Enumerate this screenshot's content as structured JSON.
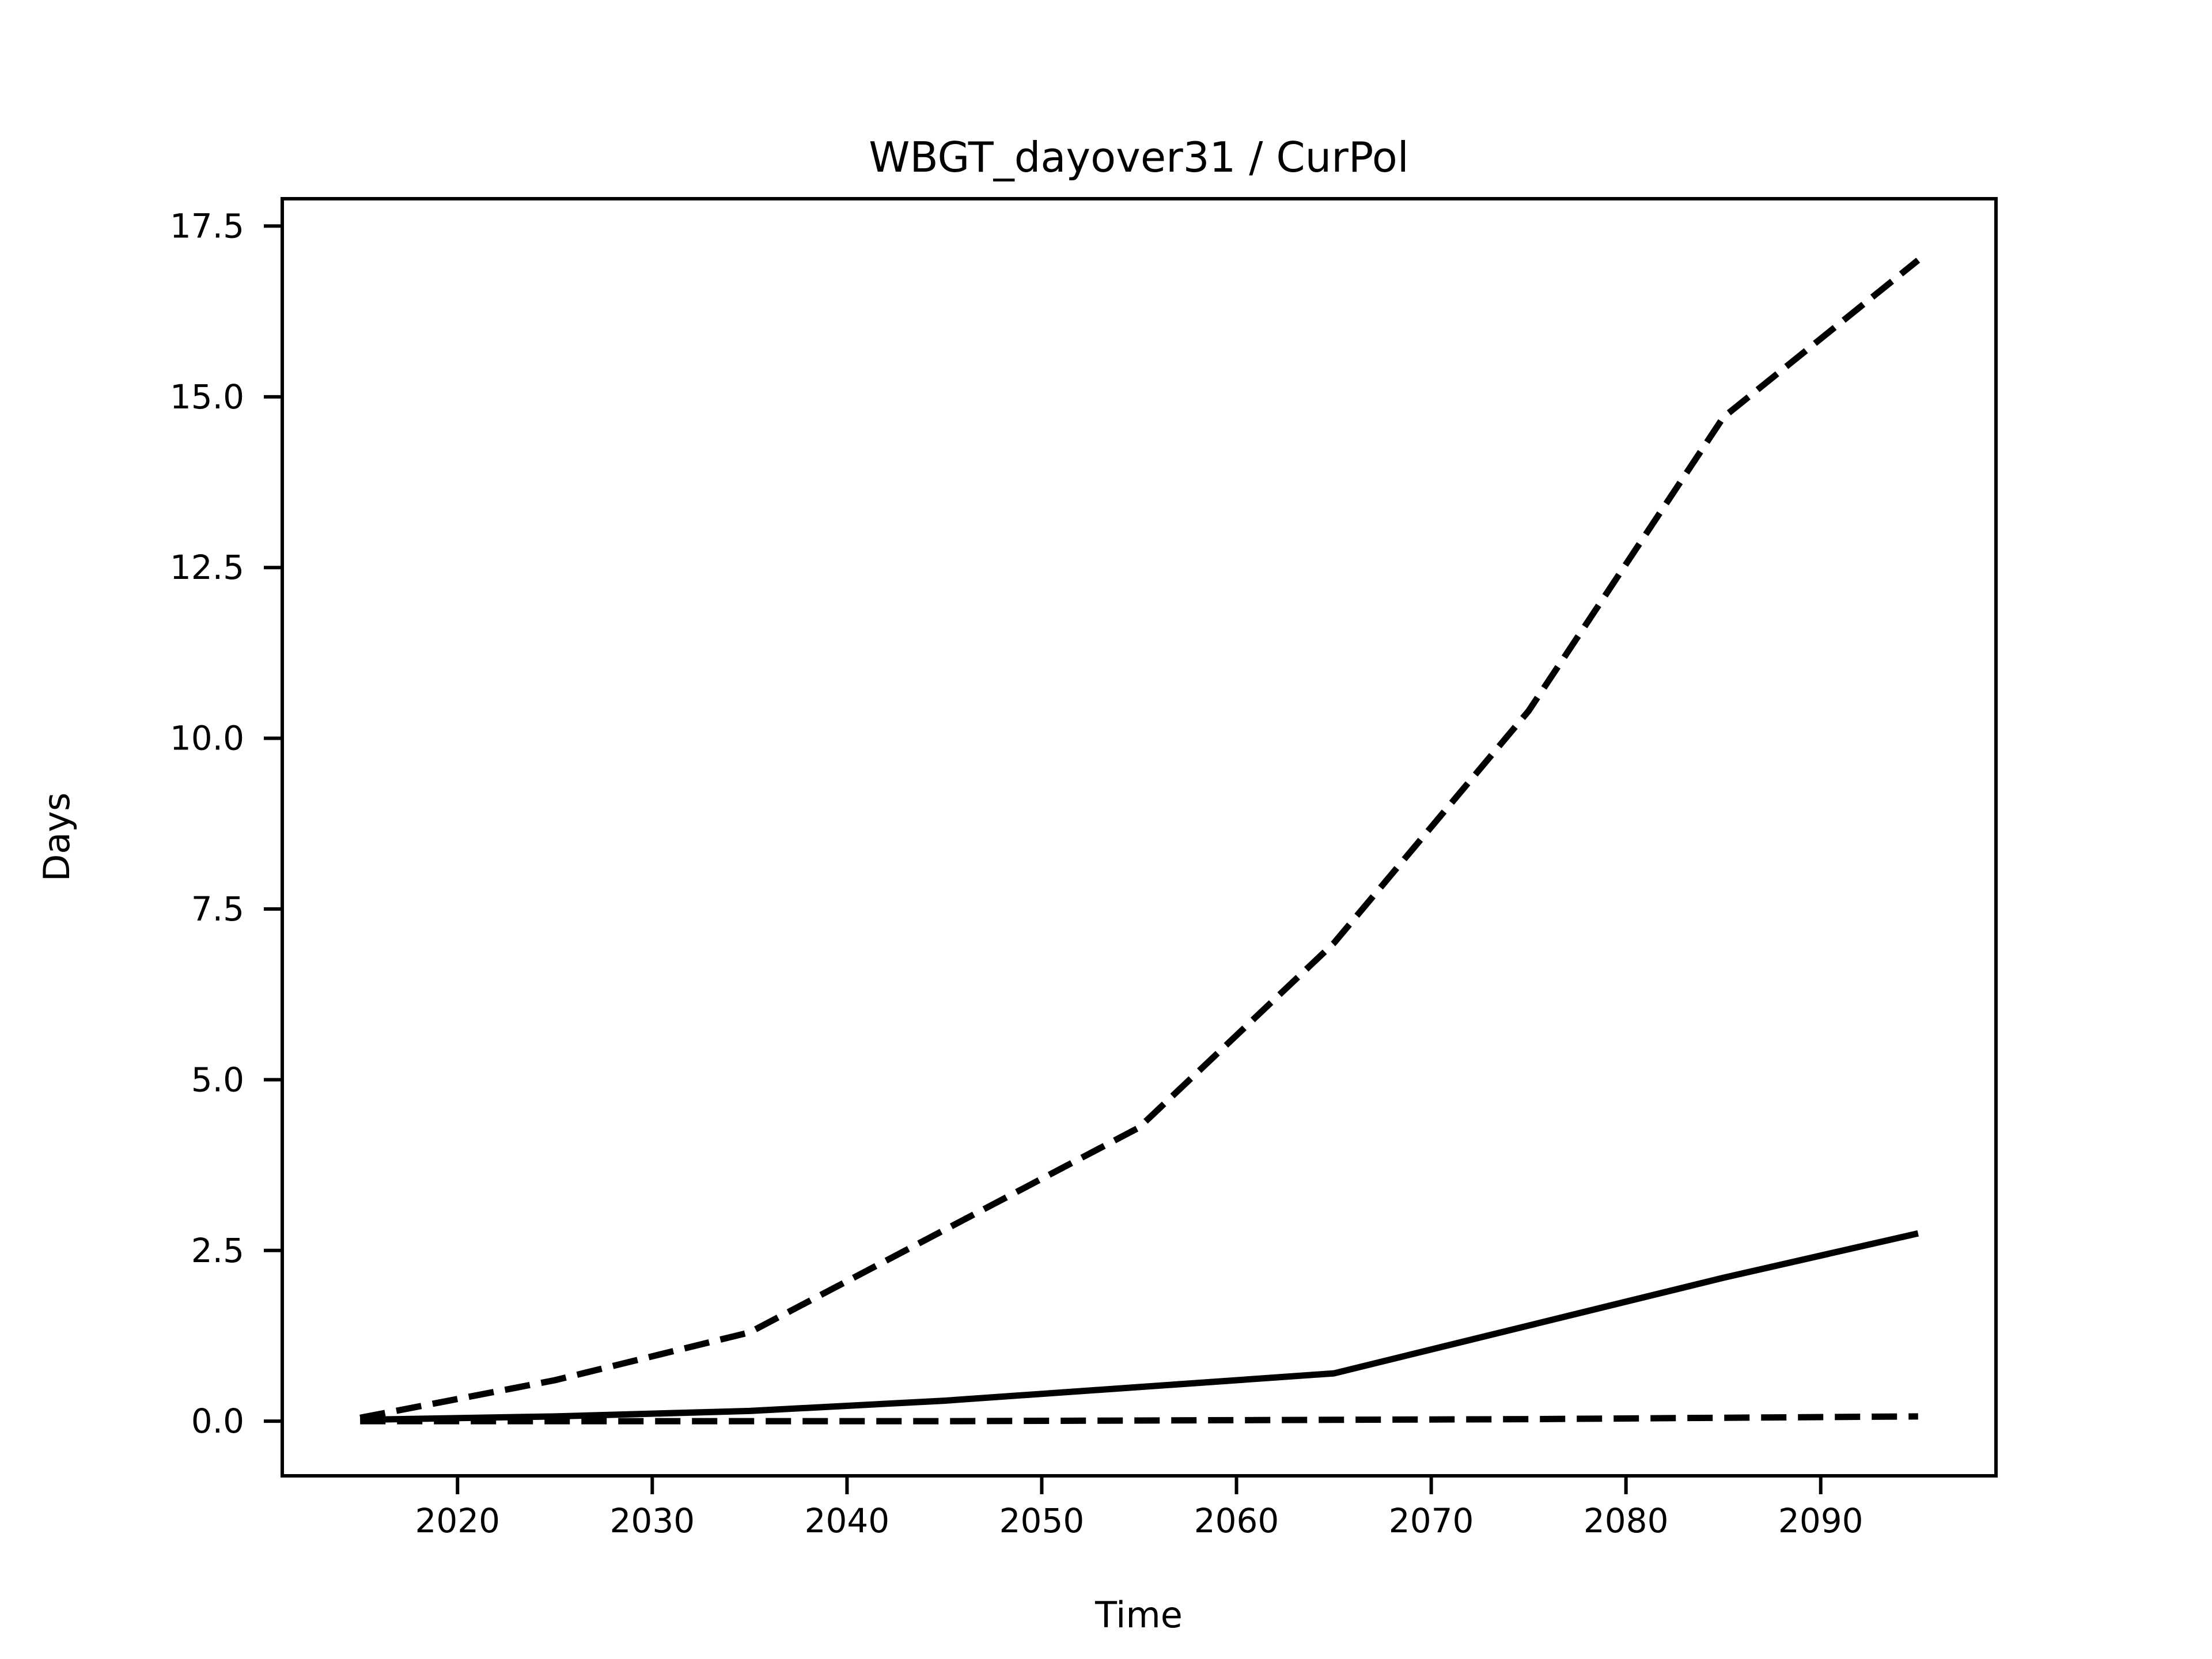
{
  "figure": {
    "background": "#ffffff",
    "line_color": "#000000"
  },
  "chart_data": {
    "type": "line",
    "title": "WBGT_dayover31 / CurPol",
    "xlabel": "Time",
    "ylabel": "Days",
    "xlim": [
      2011,
      2099
    ],
    "ylim": [
      -0.8,
      17.9
    ],
    "grid": false,
    "legend": "none",
    "xticks": [
      2020,
      2030,
      2040,
      2050,
      2060,
      2070,
      2080,
      2090
    ],
    "ytick_labels": [
      "0.0",
      "2.5",
      "5.0",
      "7.5",
      "10.0",
      "12.5",
      "15.0",
      "17.5"
    ],
    "ytick_values": [
      0.0,
      2.5,
      5.0,
      7.5,
      10.0,
      12.5,
      15.0,
      17.5
    ],
    "x": [
      2015,
      2025,
      2035,
      2045,
      2055,
      2065,
      2075,
      2085,
      2095
    ],
    "series": [
      {
        "name": "upper-dashed-line",
        "style": "dashed",
        "values": [
          0.05,
          0.6,
          1.3,
          2.8,
          4.3,
          7.0,
          10.4,
          14.7,
          17.0
        ]
      },
      {
        "name": "solid-line",
        "style": "solid",
        "values": [
          0.02,
          0.07,
          0.15,
          0.3,
          0.5,
          0.7,
          1.4,
          2.1,
          2.75
        ]
      },
      {
        "name": "lower-dashed-line",
        "style": "dashed",
        "values": [
          0.0,
          0.0,
          0.0,
          0.0,
          0.01,
          0.02,
          0.03,
          0.05,
          0.07
        ]
      }
    ]
  }
}
